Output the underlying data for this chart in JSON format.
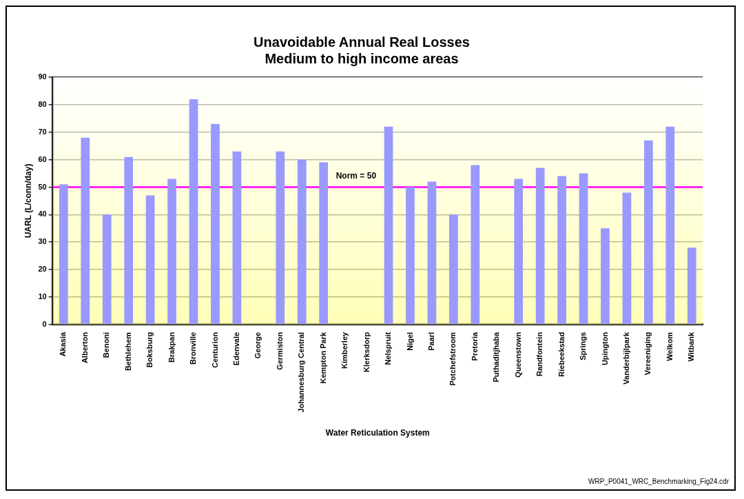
{
  "chart_data": {
    "type": "bar",
    "title": "Unavoidable Annual Real Losses",
    "subtitle": "Medium to high income areas",
    "xlabel": "Water Reticulation System",
    "ylabel": "UARL (L/conn/day)",
    "categories": [
      "Akasia",
      "Alberton",
      "Benoni",
      "Bethlehem",
      "Boksburg",
      "Brakpan",
      "Bronville",
      "Centurion",
      "Edenvale",
      "George",
      "Germiston",
      "Johannesburg Central",
      "Kempton Park",
      "Kimberley",
      "Klerksdorp",
      "Nelspruit",
      "Nigel",
      "Paarl",
      "Potchefstroom",
      "Pretoria",
      "Puthaditjhaba",
      "Queenstown",
      "Randfontein",
      "Riebeekstad",
      "Springs",
      "Upington",
      "Vanderbijlpark",
      "Vereeniging",
      "Welkom",
      "Witbank"
    ],
    "values": [
      51,
      68,
      40,
      61,
      47,
      53,
      82,
      73,
      63,
      null,
      63,
      60,
      59,
      null,
      null,
      72,
      50,
      52,
      40,
      58,
      null,
      53,
      57,
      54,
      55,
      35,
      48,
      67,
      72,
      28
    ],
    "color": "#9999ff",
    "ylim": [
      0,
      90
    ],
    "yticks": [
      0,
      10,
      20,
      30,
      40,
      50,
      60,
      70,
      80,
      90
    ],
    "grid": "y",
    "legend": false,
    "ref_lines": [
      {
        "axis": "y",
        "value": 50,
        "label": "Norm = 50",
        "color": "#ff00ff"
      }
    ],
    "annotations": [
      "WRP_P0041_WRC_Benchmarking_Fig24.cdr"
    ]
  }
}
